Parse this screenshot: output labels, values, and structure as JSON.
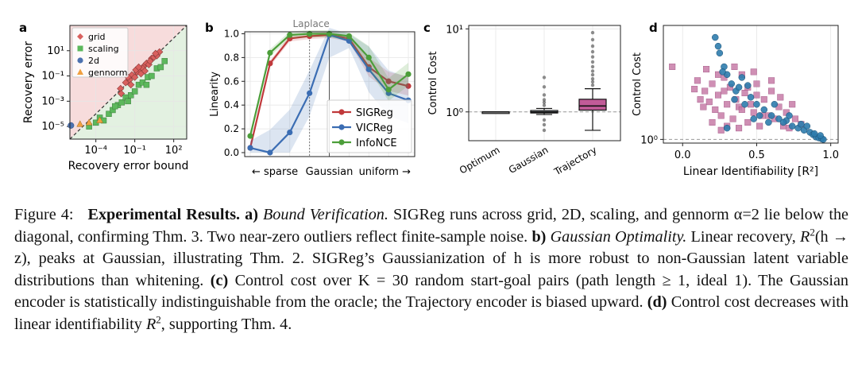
{
  "chart_data": [
    {
      "panel": "a",
      "type": "scatter",
      "xlabel": "Recovery error bound",
      "ylabel": "Recovery error",
      "xscale": "log",
      "yscale": "log",
      "xlim": [
        1e-06,
        1000.0
      ],
      "ylim": [
        1e-06,
        1000.0
      ],
      "xticks": [
        "10⁻⁴",
        "10⁻¹",
        "10²"
      ],
      "yticks": [
        "10¹",
        "10⁻¹",
        "10⁻³",
        "10⁻⁵"
      ],
      "diagonal": true,
      "legend": "top-left",
      "series": [
        {
          "name": "grid",
          "marker": "diamond",
          "color": "#d9605e",
          "points": [
            [
              0.008,
              0.01
            ],
            [
              0.02,
              0.03
            ],
            [
              0.04,
              0.05
            ],
            [
              0.06,
              0.12
            ],
            [
              0.1,
              0.08
            ],
            [
              0.15,
              0.2
            ],
            [
              0.25,
              0.3
            ],
            [
              0.3,
              0.15
            ],
            [
              0.5,
              0.6
            ],
            [
              0.8,
              1.0
            ],
            [
              1.2,
              0.8
            ],
            [
              2,
              2.5
            ],
            [
              3,
              3
            ],
            [
              5,
              4
            ],
            [
              8,
              8
            ],
            [
              0.05,
              0.02
            ],
            [
              0.4,
              0.4
            ],
            [
              1.5,
              1.5
            ],
            [
              0.12,
              0.3
            ],
            [
              0.6,
              0.25
            ],
            [
              0.03,
              0.08
            ],
            [
              0.2,
              0.5
            ],
            [
              4,
              6
            ],
            [
              0.009,
              0.004
            ]
          ]
        },
        {
          "name": "scaling",
          "marker": "square",
          "color": "#5cb85c",
          "points": [
            [
              3e-05,
              1e-05
            ],
            [
              0.0001,
              2e-05
            ],
            [
              0.0002,
              5e-05
            ],
            [
              0.0004,
              3e-05
            ],
            [
              0.001,
              0.0001
            ],
            [
              0.002,
              0.0002
            ],
            [
              0.005,
              0.0005
            ],
            [
              0.01,
              0.0008
            ],
            [
              0.02,
              0.002
            ],
            [
              0.05,
              0.003
            ],
            [
              0.1,
              0.006
            ],
            [
              0.2,
              0.02
            ],
            [
              0.4,
              0.03
            ],
            [
              1,
              0.08
            ],
            [
              2,
              0.1
            ],
            [
              5,
              0.4
            ],
            [
              10,
              0.5
            ],
            [
              20,
              1.5
            ],
            [
              0.003,
              0.0004
            ],
            [
              0.03,
              0.001
            ],
            [
              0.8,
              0.02
            ]
          ]
        },
        {
          "name": "2d",
          "marker": "circle",
          "color": "#4c72b0",
          "points": [
            [
              1.2e-06,
              1.2e-05
            ]
          ]
        },
        {
          "name": "gennorm",
          "marker": "triangle",
          "color": "#f0a040",
          "points": [
            [
              6e-06,
              1.5e-05
            ],
            [
              3e-05,
              2e-05
            ],
            [
              0.0002,
              3e-05
            ]
          ]
        }
      ]
    },
    {
      "panel": "b",
      "type": "line",
      "xlabel": "← sparse      Gaussian    uniform →",
      "x_axis": {
        "sparse": "← sparse",
        "gaussian": "Gaussian",
        "uniform": "uniform →"
      },
      "annotation": "Laplace",
      "ylabel": "Linearity",
      "ylim": [
        0,
        1.05
      ],
      "yticks": [
        "0.0",
        "0.2",
        "0.4",
        "0.6",
        "0.8",
        "1.0"
      ],
      "x": [
        0,
        1,
        2,
        3,
        4,
        5,
        6,
        7,
        8
      ],
      "legend": "bottom-right",
      "series": [
        {
          "name": "SIGReg",
          "color": "#c0393b",
          "values": [
            0.04,
            0.75,
            0.96,
            0.98,
            0.99,
            0.96,
            0.72,
            0.6,
            0.56
          ],
          "band": 0.05
        },
        {
          "name": "VICReg",
          "color": "#3b6db3",
          "values": [
            0.04,
            0.0,
            0.17,
            0.5,
            0.99,
            0.94,
            0.7,
            0.5,
            0.44
          ],
          "band": 0.12
        },
        {
          "name": "InfoNCE",
          "color": "#4c9e3a",
          "values": [
            0.14,
            0.84,
            0.99,
            1.0,
            1.0,
            0.98,
            0.8,
            0.53,
            0.66
          ],
          "band": 0.06
        }
      ]
    },
    {
      "panel": "c",
      "type": "box",
      "ylabel": "Control Cost",
      "yscale": "log",
      "yticks": [
        "10⁰",
        "10¹"
      ],
      "categories": [
        "Optimum",
        "Gaussian",
        "Trajectory"
      ],
      "boxes": [
        {
          "label": "Optimum",
          "q1": 1.0,
          "median": 1.0,
          "q3": 1.0,
          "whislo": 1.0,
          "whishi": 1.0,
          "fliers": []
        },
        {
          "label": "Gaussian",
          "q1": 0.97,
          "median": 1.0,
          "q3": 1.04,
          "whislo": 0.93,
          "whishi": 1.1,
          "fliers": [
            0.6,
            0.7,
            0.8,
            1.2,
            1.3,
            1.4,
            1.6,
            2.0,
            2.6
          ]
        },
        {
          "label": "Trajectory",
          "q1": 1.05,
          "median": 1.18,
          "q3": 1.42,
          "whislo": 0.6,
          "whishi": 1.9,
          "fliers": [
            2.1,
            2.3,
            2.5,
            2.8,
            3.1,
            3.5,
            4.0,
            4.6,
            5.3,
            6.2,
            7.4,
            9.0
          ]
        }
      ]
    },
    {
      "panel": "d",
      "type": "scatter",
      "xlabel": "Linear Identifiability [R²]",
      "ylabel": "Control Cost",
      "yscale": "log",
      "xticks": [
        "0.0",
        "0.5",
        "1.0"
      ],
      "yticks": [
        "10⁰"
      ],
      "series": [
        {
          "marker": "square",
          "color": "#c77ba7",
          "points": [
            [
              -0.07,
              4.2
            ],
            [
              0.1,
              3.2
            ],
            [
              0.15,
              2.6
            ],
            [
              0.18,
              2.1
            ],
            [
              0.2,
              3.0
            ],
            [
              0.22,
              1.8
            ],
            [
              0.24,
              2.4
            ],
            [
              0.26,
              1.6
            ],
            [
              0.28,
              3.4
            ],
            [
              0.3,
              2.0
            ],
            [
              0.32,
              2.8
            ],
            [
              0.34,
              1.5
            ],
            [
              0.36,
              2.2
            ],
            [
              0.38,
              1.9
            ],
            [
              0.4,
              3.6
            ],
            [
              0.42,
              2.5
            ],
            [
              0.44,
              1.4
            ],
            [
              0.46,
              2.0
            ],
            [
              0.48,
              1.7
            ],
            [
              0.5,
              3.0
            ],
            [
              0.52,
              1.3
            ],
            [
              0.55,
              2.2
            ],
            [
              0.58,
              1.6
            ],
            [
              0.6,
              2.6
            ],
            [
              0.62,
              1.5
            ],
            [
              0.65,
              1.9
            ],
            [
              0.68,
              1.3
            ],
            [
              0.7,
              1.7
            ],
            [
              0.72,
              1.25
            ],
            [
              0.76,
              1.5
            ],
            [
              0.8,
              1.35
            ],
            [
              0.14,
              1.9
            ],
            [
              0.2,
              1.4
            ],
            [
              0.3,
              1.3
            ],
            [
              0.44,
              2.8
            ],
            [
              0.24,
              3.6
            ],
            [
              0.35,
              4.2
            ],
            [
              0.48,
              3.8
            ],
            [
              0.6,
              3.2
            ],
            [
              0.66,
              2.3
            ],
            [
              0.12,
              2.2
            ],
            [
              0.26,
              1.2
            ],
            [
              0.38,
              1.25
            ],
            [
              0.54,
              1.6
            ],
            [
              0.74,
              2.0
            ],
            [
              0.08,
              2.7
            ],
            [
              0.16,
              4.0
            ],
            [
              0.28,
              2.6
            ],
            [
              0.4,
              1.8
            ],
            [
              0.5,
              2.4
            ]
          ]
        },
        {
          "marker": "circle",
          "color": "#2e7cad",
          "points": [
            [
              0.22,
              7.5
            ],
            [
              0.25,
              5.5
            ],
            [
              0.28,
              4.2
            ],
            [
              0.3,
              3.6
            ],
            [
              0.33,
              3.0
            ],
            [
              0.36,
              2.6
            ],
            [
              0.4,
              3.4
            ],
            [
              0.44,
              2.9
            ],
            [
              0.46,
              2.3
            ],
            [
              0.5,
              2.0
            ],
            [
              0.55,
              1.8
            ],
            [
              0.6,
              1.6
            ],
            [
              0.65,
              1.5
            ],
            [
              0.7,
              1.45
            ],
            [
              0.74,
              1.3
            ],
            [
              0.78,
              1.25
            ],
            [
              0.82,
              1.2
            ],
            [
              0.86,
              1.15
            ],
            [
              0.88,
              1.1
            ],
            [
              0.9,
              1.05
            ],
            [
              0.92,
              1.03
            ],
            [
              0.94,
              1.01
            ],
            [
              0.95,
              1.0
            ],
            [
              0.93,
              1.08
            ],
            [
              0.89,
              1.12
            ],
            [
              0.84,
              1.3
            ],
            [
              0.8,
              1.35
            ],
            [
              0.72,
              1.6
            ],
            [
              0.68,
              1.4
            ],
            [
              0.62,
              2.0
            ],
            [
              0.58,
              1.4
            ],
            [
              0.52,
              1.6
            ],
            [
              0.42,
              2.0
            ],
            [
              0.38,
              2.8
            ],
            [
              0.24,
              6.3
            ],
            [
              0.27,
              3.8
            ],
            [
              0.35,
              2.2
            ],
            [
              0.48,
              1.5
            ],
            [
              0.3,
              1.25
            ]
          ]
        }
      ],
      "reference_line": 1.0
    }
  ],
  "caption": {
    "fig_label": "Figure 4:",
    "title": "Experimental Results.",
    "a_label": "a)",
    "a_title": "Bound Verification.",
    "a_text": "SIGReg runs across grid, 2D, scaling, and gennorm α=2 lie below the diagonal, confirming Thm. 3. Two near-zero outliers reflect finite-sample noise.",
    "b_label": "b)",
    "b_title": "Gaussian Optimality.",
    "b_text_1": "Linear recovery,",
    "b_text_2": "(h → z), peaks at Gaussian, illustrating Thm. 2. SIGReg’s Gaussianization of h is more robust to non-Gaussian latent variable distributions than whitening.",
    "c_label": "(c)",
    "c_text": "Control cost over K = 30 random start-goal pairs (path length ≥ 1, ideal 1). The Gaussian encoder is statistically indistinguishable from the oracle; the Trajectory encoder is biased upward.",
    "d_label": "(d)",
    "d_text_1": "Control cost decreases with linear identifiability",
    "d_text_2": ", supporting Thm. 4.",
    "r": "R",
    "sq": "2"
  },
  "colors": {
    "red_region": "#f7dcdc",
    "green_region": "#e3f1e1"
  }
}
